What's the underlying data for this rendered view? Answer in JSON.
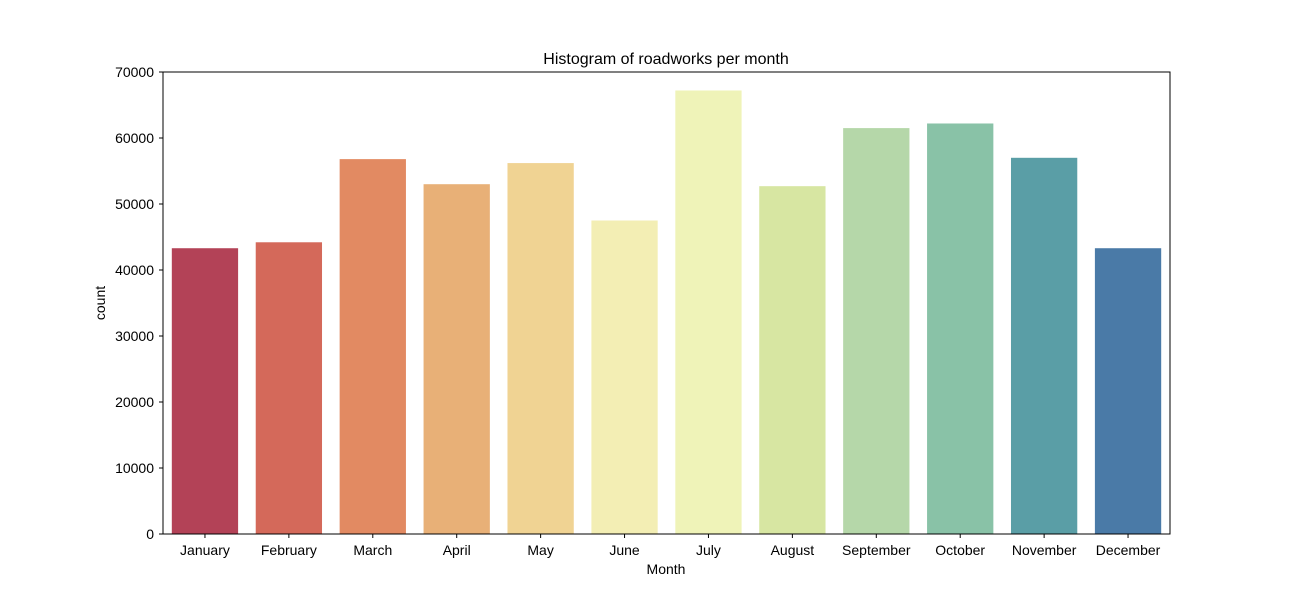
{
  "chart_data": {
    "type": "bar",
    "title": "Histogram of roadworks per month",
    "xlabel": "Month",
    "ylabel": "count",
    "categories": [
      "January",
      "February",
      "March",
      "April",
      "May",
      "June",
      "July",
      "August",
      "September",
      "October",
      "November",
      "December"
    ],
    "values": [
      43300,
      44200,
      56800,
      53000,
      56200,
      47500,
      67200,
      52700,
      61500,
      62200,
      57000,
      43300
    ],
    "colors": [
      "#b34257",
      "#d4695a",
      "#e28a62",
      "#e8b077",
      "#f0d393",
      "#f3eeb4",
      "#eff3b8",
      "#d7e6a2",
      "#b5d7a9",
      "#89c2a7",
      "#5a9ea6",
      "#4a7aa7"
    ],
    "ylim": [
      0,
      70000
    ],
    "yticks": [
      0,
      10000,
      20000,
      30000,
      40000,
      50000,
      60000,
      70000
    ],
    "grid": false,
    "legend": "none"
  }
}
